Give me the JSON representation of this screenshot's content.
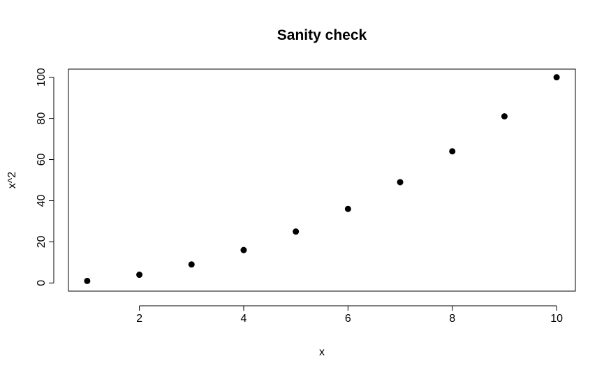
{
  "chart_data": {
    "type": "scatter",
    "title": "Sanity check",
    "xlabel": "x",
    "ylabel": "x^2",
    "xlim": [
      0.64,
      10.36
    ],
    "ylim": [
      -3.96,
      103.96
    ],
    "x_ticks": [
      2,
      4,
      6,
      8,
      10
    ],
    "y_ticks": [
      0,
      20,
      40,
      60,
      80,
      100
    ],
    "x_tick_labels": [
      "2",
      "4",
      "6",
      "8",
      "10"
    ],
    "y_tick_labels": [
      "0",
      "20",
      "40",
      "60",
      "80",
      "100"
    ],
    "grid": false,
    "legend": "none",
    "marker_color": "#000000",
    "series": [
      {
        "x": [
          1,
          2,
          3,
          4,
          5,
          6,
          7,
          8,
          9,
          10
        ],
        "y": [
          1,
          4,
          9,
          16,
          25,
          36,
          49,
          64,
          81,
          100
        ]
      }
    ]
  }
}
